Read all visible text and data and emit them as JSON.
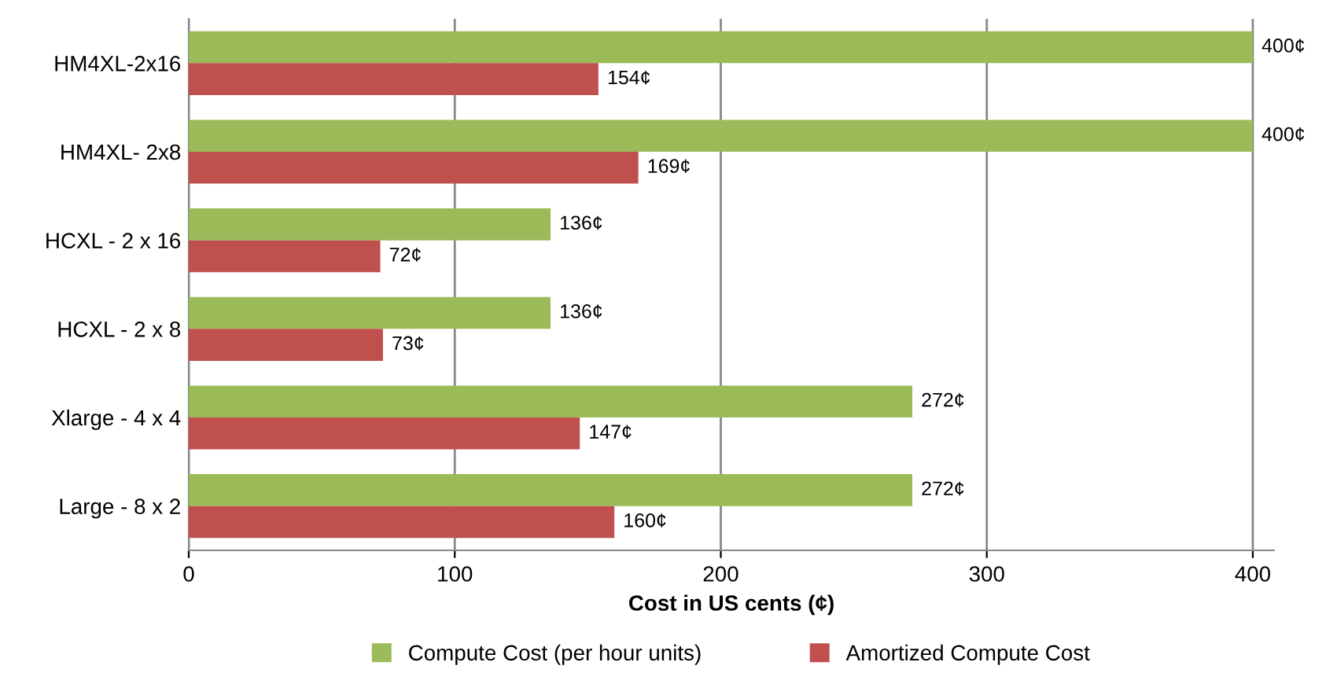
{
  "chart_data": {
    "type": "bar",
    "orientation": "horizontal",
    "xlabel": "Cost in US cents (¢)",
    "categories": [
      "HM4XL-2x16",
      "HM4XL- 2x8",
      "HCXL - 2 x 16",
      "HCXL - 2 x 8",
      "Xlarge - 4 x 4",
      "Large - 8 x 2"
    ],
    "series": [
      {
        "name": "Compute Cost (per hour units)",
        "color": "#9bbb59",
        "values": [
          400,
          400,
          136,
          136,
          272,
          272
        ],
        "value_labels": [
          "400¢",
          "400¢",
          "136¢",
          "136¢",
          "272¢",
          "272¢"
        ]
      },
      {
        "name": "Amortized Compute Cost",
        "color": "#c0504d",
        "values": [
          154,
          169,
          72,
          73,
          147,
          160
        ],
        "value_labels": [
          "154¢",
          "169¢",
          "72¢",
          "73¢",
          "147¢",
          "160¢"
        ]
      }
    ],
    "xlim": [
      0,
      408
    ],
    "xticks": [
      0,
      100,
      200,
      300,
      400
    ],
    "grid": "x",
    "legend": "bottom"
  }
}
